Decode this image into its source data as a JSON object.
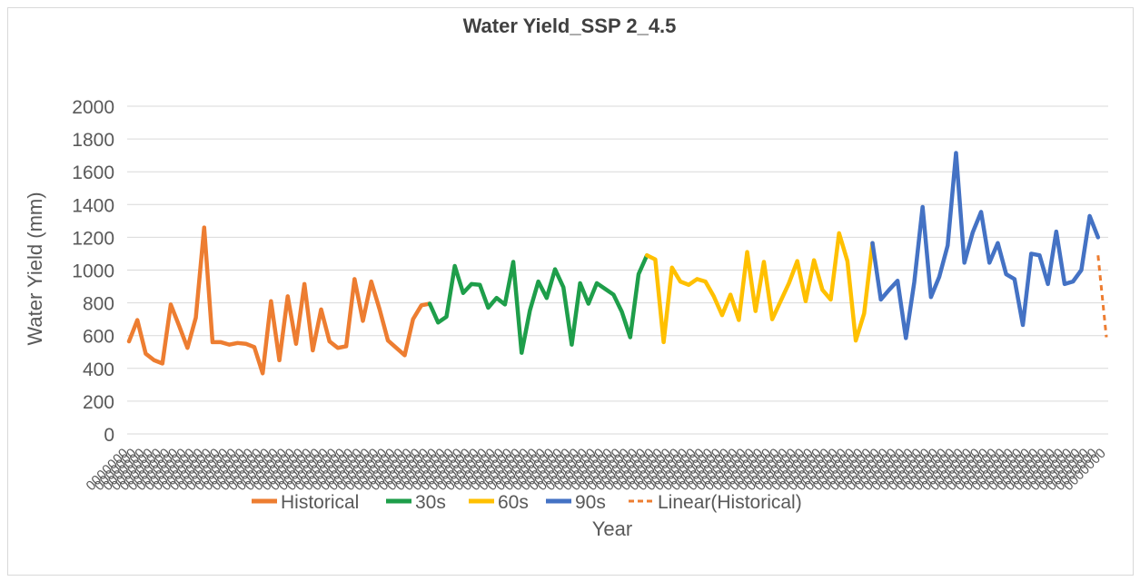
{
  "chart_data": {
    "type": "line",
    "title": "Water Yield_SSP 2_4.5",
    "xlabel": "Year",
    "ylabel": "Water Yield (mm)",
    "ylim": [
      0,
      2000
    ],
    "yticks": [
      0,
      200,
      400,
      600,
      800,
      1000,
      1200,
      1400,
      1600,
      1800,
      2000
    ],
    "grid": true,
    "legend_position": "bottom",
    "x_tick_labels_legible": false,
    "colors": {
      "Historical": "#ED7D31",
      "30s": "#1E9E4A",
      "60s": "#FFC000",
      "90s": "#4472C4",
      "Linear(Historical)": "#ED7D31",
      "grid": "#d9d9d9"
    },
    "series": [
      {
        "name": "Historical",
        "style": "solid",
        "x_start": 1,
        "values": [
          565,
          695,
          490,
          450,
          430,
          790,
          660,
          525,
          710,
          1260,
          560,
          560,
          545,
          555,
          550,
          530,
          370,
          810,
          450,
          840,
          550,
          915,
          510,
          760,
          565,
          525,
          535,
          945,
          690,
          930,
          760,
          570,
          525,
          480,
          700,
          785,
          795
        ]
      },
      {
        "name": "30s",
        "style": "solid",
        "x_start": 37,
        "values": [
          795,
          680,
          715,
          1025,
          860,
          915,
          910,
          770,
          830,
          790,
          1050,
          495,
          755,
          930,
          830,
          1005,
          895,
          545,
          920,
          795,
          920,
          885,
          850,
          745,
          590,
          975,
          1090
        ]
      },
      {
        "name": "60s",
        "style": "solid",
        "x_start": 63,
        "values": [
          1090,
          1065,
          560,
          1015,
          930,
          910,
          945,
          930,
          840,
          725,
          850,
          695,
          1110,
          750,
          1050,
          700,
          810,
          920,
          1055,
          810,
          1060,
          880,
          820,
          1225,
          1055,
          570,
          735,
          1165
        ]
      },
      {
        "name": "90s",
        "style": "solid",
        "x_start": 90,
        "values": [
          1165,
          820,
          880,
          935,
          585,
          925,
          1385,
          835,
          960,
          1150,
          1715,
          1045,
          1230,
          1355,
          1045,
          1165,
          975,
          945,
          665,
          1100,
          1090,
          915,
          1235,
          915,
          930,
          1000,
          1330,
          1200
        ]
      },
      {
        "name": "Linear(Historical)",
        "style": "dashed",
        "x_start": 117,
        "values": [
          1090,
          590
        ]
      }
    ]
  }
}
